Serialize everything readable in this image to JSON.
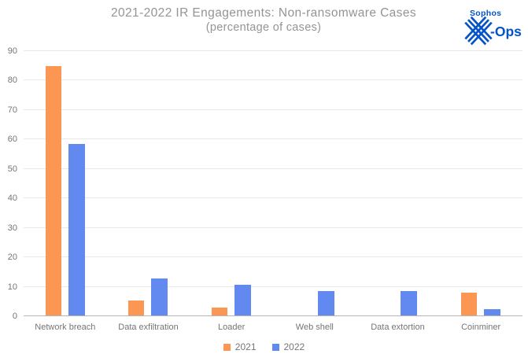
{
  "title": {
    "line1": "2021-2022 IR Engagements: Non-ransomware Cases",
    "line2": "(percentage of cases)"
  },
  "logo": {
    "brand": "Sophos",
    "suffix": "-Ops",
    "color": "#0553C8"
  },
  "chart_data": {
    "type": "bar",
    "title": "2021-2022 IR Engagements: Non-ransomware Cases",
    "subtitle": "(percentage of cases)",
    "categories": [
      "Network breach",
      "Data exfiltration",
      "Loader",
      "Web shell",
      "Data extortion",
      "Coinminer"
    ],
    "series": [
      {
        "name": "2021",
        "color": "#FB9653",
        "values": [
          84.6,
          5.1,
          2.6,
          0,
          0,
          7.7
        ]
      },
      {
        "name": "2022",
        "color": "#6289F0",
        "values": [
          58.3,
          12.5,
          10.4,
          8.3,
          8.3,
          2.1
        ]
      }
    ],
    "xlabel": "",
    "ylabel": "",
    "ylim": [
      0,
      90
    ],
    "yticks": [
      0,
      10,
      20,
      30,
      40,
      50,
      60,
      70,
      80,
      90
    ],
    "grid": true,
    "legend_position": "bottom",
    "colors": {
      "gridline": "#e8e8e8",
      "baseline": "#b5b5b5",
      "axis_text": "#757575",
      "title_text": "#949494"
    }
  }
}
